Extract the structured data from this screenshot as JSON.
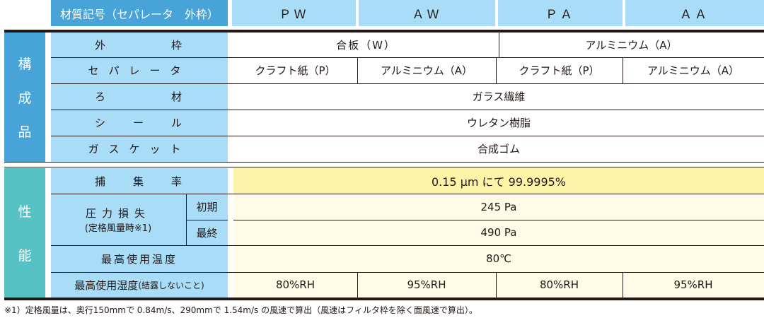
{
  "header": {
    "title": "材質記号（セパレータ　外枠）",
    "columns": [
      "ＰＷ",
      "ＡＷ",
      "ＰＡ",
      "ＡＡ"
    ]
  },
  "composition": {
    "category": [
      "構",
      "成",
      "品"
    ],
    "rows": [
      {
        "label": "外　　　　　枠",
        "values": [
          "合板（W）",
          "アルミニウム（A）"
        ]
      },
      {
        "label": "セパレータ",
        "values": [
          "クラフト紙（P）",
          "アルミニウム（A）",
          "クラフト紙（P）",
          "アルミニウム（A）"
        ]
      },
      {
        "label": "ろ　　　　　材",
        "value": "ガラス繊維"
      },
      {
        "label": "シ　　ー　　ル",
        "value": "ウレタン樹脂"
      },
      {
        "label": "ガスケット",
        "value": "合成ゴム"
      }
    ]
  },
  "performance": {
    "category": [
      "性",
      "能"
    ],
    "efficiency": {
      "label": "捕　　集　　率",
      "value": "0.15 μm にて 99.9995%"
    },
    "pressure": {
      "label": "圧力損失",
      "sublabel": "(定格風量時※1)",
      "initial_label": "初期",
      "initial_value": "245 Pa",
      "final_label": "最終",
      "final_value": "490 Pa"
    },
    "temp": {
      "label": "最高使用温度",
      "value": "80℃"
    },
    "humidity": {
      "label": "最高使用湿度",
      "note": "(結露しないこと)",
      "values": [
        "80%RH",
        "95%RH",
        "80%RH",
        "95%RH"
      ]
    }
  },
  "footnote": "※1）定格風量は、奥行150mmで 0.84m/s、290mmで 1.54m/s の風速で算出（風速はフィルタ枠を除く面風速で算出）。",
  "colors": {
    "header_dark": "#47a3d8",
    "header_light": "#a9dcf6",
    "performance": "#57c2c3",
    "highlight": "#fdf4a8",
    "cell_bg": "#fffbe6"
  }
}
